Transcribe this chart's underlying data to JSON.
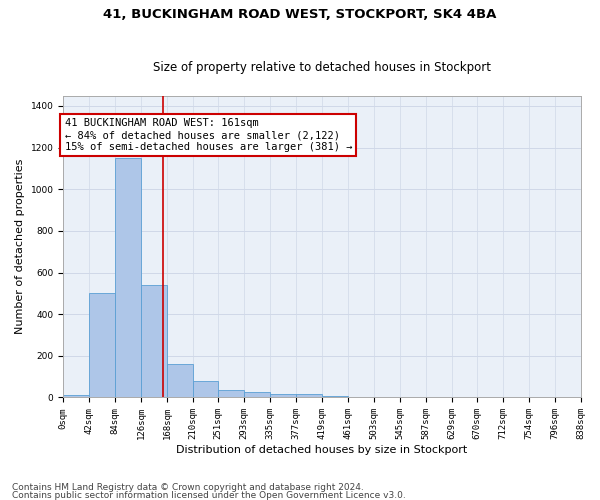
{
  "title1": "41, BUCKINGHAM ROAD WEST, STOCKPORT, SK4 4BA",
  "title2": "Size of property relative to detached houses in Stockport",
  "xlabel": "Distribution of detached houses by size in Stockport",
  "ylabel": "Number of detached properties",
  "footer1": "Contains HM Land Registry data © Crown copyright and database right 2024.",
  "footer2": "Contains public sector information licensed under the Open Government Licence v3.0.",
  "annotation_line1": "41 BUCKINGHAM ROAD WEST: 161sqm",
  "annotation_line2": "← 84% of detached houses are smaller (2,122)",
  "annotation_line3": "15% of semi-detached houses are larger (381) →",
  "property_size": 161,
  "bar_edges": [
    0,
    42,
    84,
    126,
    168,
    210,
    251,
    293,
    335,
    377,
    419,
    461,
    503,
    545,
    587,
    629,
    670,
    712,
    754,
    796,
    838
  ],
  "bar_heights": [
    10,
    500,
    1150,
    540,
    160,
    80,
    35,
    28,
    18,
    15,
    5,
    3,
    2,
    2,
    1,
    1,
    0,
    0,
    0,
    0
  ],
  "bar_color": "#aec6e8",
  "bar_edgecolor": "#5a9fd4",
  "vline_color": "#cc0000",
  "vline_x": 161,
  "annotation_box_color": "#cc0000",
  "ylim": [
    0,
    1450
  ],
  "yticks": [
    0,
    200,
    400,
    600,
    800,
    1000,
    1200,
    1400
  ],
  "grid_color": "#d0d8e8",
  "bg_color": "#eaf0f8",
  "title1_fontsize": 9.5,
  "title2_fontsize": 8.5,
  "xlabel_fontsize": 8,
  "ylabel_fontsize": 8,
  "tick_fontsize": 6.5,
  "footer_fontsize": 6.5,
  "annotation_fontsize": 7.5
}
